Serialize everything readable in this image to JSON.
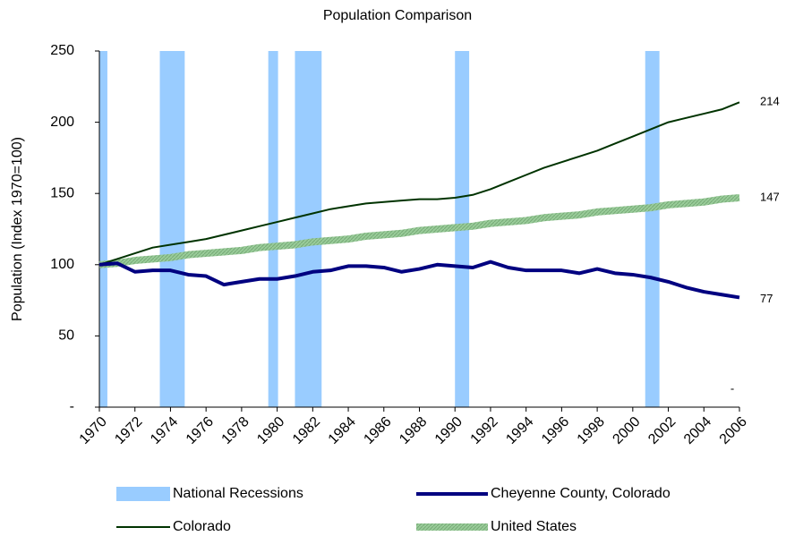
{
  "chart_data": {
    "type": "line",
    "title": "Population Comparison",
    "y_label": "Population (Index 1970=100)",
    "annotation": "-",
    "x": [
      1970,
      1971,
      1972,
      1973,
      1974,
      1975,
      1976,
      1977,
      1978,
      1979,
      1980,
      1981,
      1982,
      1983,
      1984,
      1985,
      1986,
      1987,
      1988,
      1989,
      1990,
      1991,
      1992,
      1993,
      1994,
      1995,
      1996,
      1997,
      1998,
      1999,
      2000,
      2001,
      2002,
      2003,
      2004,
      2005,
      2006
    ],
    "xlim": [
      1970,
      2006
    ],
    "xticks": [
      1970,
      1972,
      1974,
      1976,
      1978,
      1980,
      1982,
      1984,
      1986,
      1988,
      1990,
      1992,
      1994,
      1996,
      1998,
      2000,
      2002,
      2004,
      2006
    ],
    "ylim": [
      0,
      250
    ],
    "yticks": [
      {
        "value": 0,
        "label": "-"
      },
      50,
      100,
      150,
      200,
      250
    ],
    "recessions": {
      "name": "National Recessions",
      "color": "#99ccff",
      "ranges": [
        [
          1970,
          1970.45
        ],
        [
          1973.4,
          1974.8
        ],
        [
          1979.5,
          1980.05
        ],
        [
          1981.0,
          1982.5
        ],
        [
          1990.0,
          1990.8
        ],
        [
          2000.7,
          2001.5
        ]
      ]
    },
    "series": [
      {
        "name": "Cheyenne County, Colorado",
        "color": "#000080",
        "width": 4,
        "values": [
          100,
          101,
          95,
          96,
          96,
          93,
          92,
          86,
          88,
          90,
          90,
          92,
          95,
          96,
          99,
          99,
          98,
          95,
          97,
          100,
          99,
          98,
          102,
          98,
          96,
          96,
          96,
          94,
          97,
          94,
          93,
          91,
          88,
          84,
          81,
          79,
          77
        ]
      },
      {
        "name": "Colorado",
        "color": "#003300",
        "width": 2,
        "values": [
          100,
          104,
          108,
          112,
          114,
          116,
          118,
          121,
          124,
          127,
          130,
          133,
          136,
          139,
          141,
          143,
          144,
          145,
          146,
          146,
          147,
          149,
          153,
          158,
          163,
          168,
          172,
          176,
          180,
          185,
          190,
          195,
          200,
          203,
          206,
          209,
          214
        ]
      },
      {
        "name": "United States",
        "color": "#99cc99",
        "width": 8,
        "values": [
          100,
          101,
          103,
          104,
          105,
          107,
          108,
          109,
          110,
          112,
          113,
          114,
          116,
          117,
          118,
          120,
          121,
          122,
          124,
          125,
          126,
          127,
          129,
          130,
          131,
          133,
          134,
          135,
          137,
          138,
          139,
          140,
          142,
          143,
          144,
          146,
          147
        ]
      }
    ]
  }
}
